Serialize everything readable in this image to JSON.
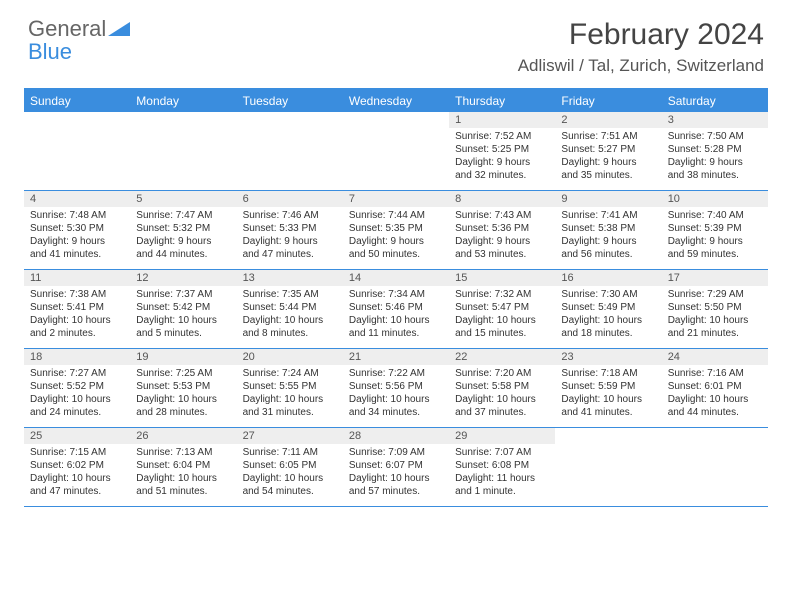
{
  "logo": {
    "text1": "General",
    "text2": "Blue"
  },
  "title": "February 2024",
  "location": "Adliswil / Tal, Zurich, Switzerland",
  "colors": {
    "header_blue": "#3a8dde",
    "daynum_bg": "#eeeeee",
    "text": "#333333",
    "title_text": "#444444"
  },
  "daysOfWeek": [
    "Sunday",
    "Monday",
    "Tuesday",
    "Wednesday",
    "Thursday",
    "Friday",
    "Saturday"
  ],
  "weeks": [
    [
      null,
      null,
      null,
      null,
      {
        "num": "1",
        "sunrise": "Sunrise: 7:52 AM",
        "sunset": "Sunset: 5:25 PM",
        "daylight1": "Daylight: 9 hours",
        "daylight2": "and 32 minutes."
      },
      {
        "num": "2",
        "sunrise": "Sunrise: 7:51 AM",
        "sunset": "Sunset: 5:27 PM",
        "daylight1": "Daylight: 9 hours",
        "daylight2": "and 35 minutes."
      },
      {
        "num": "3",
        "sunrise": "Sunrise: 7:50 AM",
        "sunset": "Sunset: 5:28 PM",
        "daylight1": "Daylight: 9 hours",
        "daylight2": "and 38 minutes."
      }
    ],
    [
      {
        "num": "4",
        "sunrise": "Sunrise: 7:48 AM",
        "sunset": "Sunset: 5:30 PM",
        "daylight1": "Daylight: 9 hours",
        "daylight2": "and 41 minutes."
      },
      {
        "num": "5",
        "sunrise": "Sunrise: 7:47 AM",
        "sunset": "Sunset: 5:32 PM",
        "daylight1": "Daylight: 9 hours",
        "daylight2": "and 44 minutes."
      },
      {
        "num": "6",
        "sunrise": "Sunrise: 7:46 AM",
        "sunset": "Sunset: 5:33 PM",
        "daylight1": "Daylight: 9 hours",
        "daylight2": "and 47 minutes."
      },
      {
        "num": "7",
        "sunrise": "Sunrise: 7:44 AM",
        "sunset": "Sunset: 5:35 PM",
        "daylight1": "Daylight: 9 hours",
        "daylight2": "and 50 minutes."
      },
      {
        "num": "8",
        "sunrise": "Sunrise: 7:43 AM",
        "sunset": "Sunset: 5:36 PM",
        "daylight1": "Daylight: 9 hours",
        "daylight2": "and 53 minutes."
      },
      {
        "num": "9",
        "sunrise": "Sunrise: 7:41 AM",
        "sunset": "Sunset: 5:38 PM",
        "daylight1": "Daylight: 9 hours",
        "daylight2": "and 56 minutes."
      },
      {
        "num": "10",
        "sunrise": "Sunrise: 7:40 AM",
        "sunset": "Sunset: 5:39 PM",
        "daylight1": "Daylight: 9 hours",
        "daylight2": "and 59 minutes."
      }
    ],
    [
      {
        "num": "11",
        "sunrise": "Sunrise: 7:38 AM",
        "sunset": "Sunset: 5:41 PM",
        "daylight1": "Daylight: 10 hours",
        "daylight2": "and 2 minutes."
      },
      {
        "num": "12",
        "sunrise": "Sunrise: 7:37 AM",
        "sunset": "Sunset: 5:42 PM",
        "daylight1": "Daylight: 10 hours",
        "daylight2": "and 5 minutes."
      },
      {
        "num": "13",
        "sunrise": "Sunrise: 7:35 AM",
        "sunset": "Sunset: 5:44 PM",
        "daylight1": "Daylight: 10 hours",
        "daylight2": "and 8 minutes."
      },
      {
        "num": "14",
        "sunrise": "Sunrise: 7:34 AM",
        "sunset": "Sunset: 5:46 PM",
        "daylight1": "Daylight: 10 hours",
        "daylight2": "and 11 minutes."
      },
      {
        "num": "15",
        "sunrise": "Sunrise: 7:32 AM",
        "sunset": "Sunset: 5:47 PM",
        "daylight1": "Daylight: 10 hours",
        "daylight2": "and 15 minutes."
      },
      {
        "num": "16",
        "sunrise": "Sunrise: 7:30 AM",
        "sunset": "Sunset: 5:49 PM",
        "daylight1": "Daylight: 10 hours",
        "daylight2": "and 18 minutes."
      },
      {
        "num": "17",
        "sunrise": "Sunrise: 7:29 AM",
        "sunset": "Sunset: 5:50 PM",
        "daylight1": "Daylight: 10 hours",
        "daylight2": "and 21 minutes."
      }
    ],
    [
      {
        "num": "18",
        "sunrise": "Sunrise: 7:27 AM",
        "sunset": "Sunset: 5:52 PM",
        "daylight1": "Daylight: 10 hours",
        "daylight2": "and 24 minutes."
      },
      {
        "num": "19",
        "sunrise": "Sunrise: 7:25 AM",
        "sunset": "Sunset: 5:53 PM",
        "daylight1": "Daylight: 10 hours",
        "daylight2": "and 28 minutes."
      },
      {
        "num": "20",
        "sunrise": "Sunrise: 7:24 AM",
        "sunset": "Sunset: 5:55 PM",
        "daylight1": "Daylight: 10 hours",
        "daylight2": "and 31 minutes."
      },
      {
        "num": "21",
        "sunrise": "Sunrise: 7:22 AM",
        "sunset": "Sunset: 5:56 PM",
        "daylight1": "Daylight: 10 hours",
        "daylight2": "and 34 minutes."
      },
      {
        "num": "22",
        "sunrise": "Sunrise: 7:20 AM",
        "sunset": "Sunset: 5:58 PM",
        "daylight1": "Daylight: 10 hours",
        "daylight2": "and 37 minutes."
      },
      {
        "num": "23",
        "sunrise": "Sunrise: 7:18 AM",
        "sunset": "Sunset: 5:59 PM",
        "daylight1": "Daylight: 10 hours",
        "daylight2": "and 41 minutes."
      },
      {
        "num": "24",
        "sunrise": "Sunrise: 7:16 AM",
        "sunset": "Sunset: 6:01 PM",
        "daylight1": "Daylight: 10 hours",
        "daylight2": "and 44 minutes."
      }
    ],
    [
      {
        "num": "25",
        "sunrise": "Sunrise: 7:15 AM",
        "sunset": "Sunset: 6:02 PM",
        "daylight1": "Daylight: 10 hours",
        "daylight2": "and 47 minutes."
      },
      {
        "num": "26",
        "sunrise": "Sunrise: 7:13 AM",
        "sunset": "Sunset: 6:04 PM",
        "daylight1": "Daylight: 10 hours",
        "daylight2": "and 51 minutes."
      },
      {
        "num": "27",
        "sunrise": "Sunrise: 7:11 AM",
        "sunset": "Sunset: 6:05 PM",
        "daylight1": "Daylight: 10 hours",
        "daylight2": "and 54 minutes."
      },
      {
        "num": "28",
        "sunrise": "Sunrise: 7:09 AM",
        "sunset": "Sunset: 6:07 PM",
        "daylight1": "Daylight: 10 hours",
        "daylight2": "and 57 minutes."
      },
      {
        "num": "29",
        "sunrise": "Sunrise: 7:07 AM",
        "sunset": "Sunset: 6:08 PM",
        "daylight1": "Daylight: 11 hours",
        "daylight2": "and 1 minute."
      },
      null,
      null
    ]
  ]
}
